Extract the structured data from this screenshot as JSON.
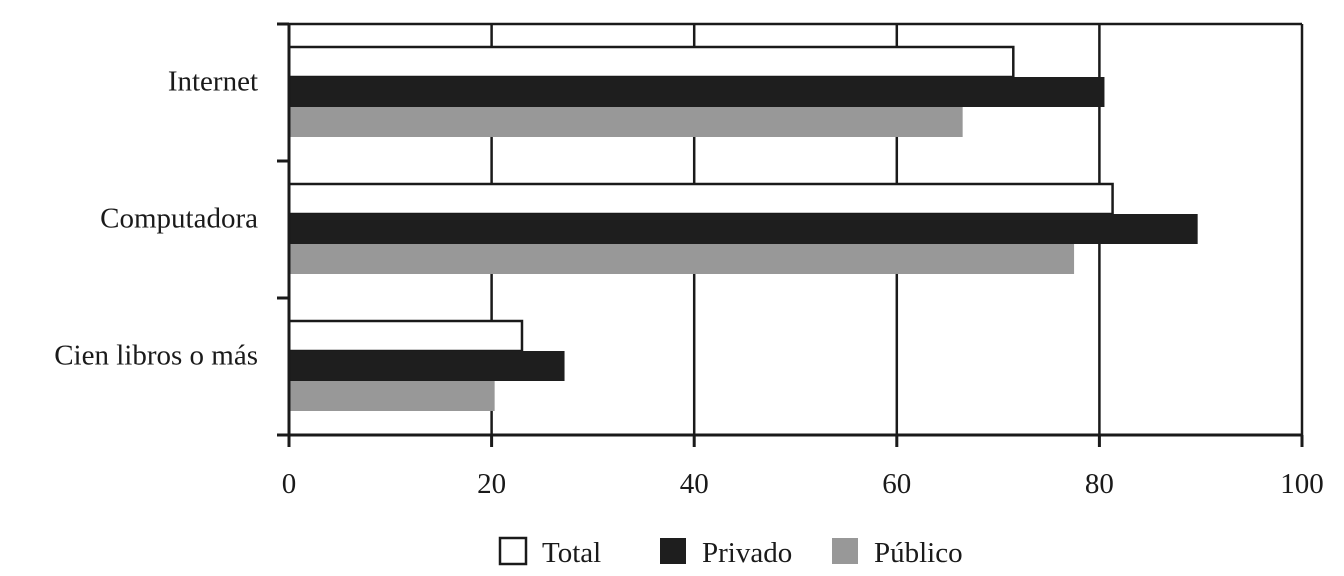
{
  "chart_data": {
    "type": "bar",
    "orientation": "horizontal",
    "categories": [
      "Internet",
      "Computadora",
      "Cien libros  o más"
    ],
    "series": [
      {
        "name": "Total",
        "values": [
          71.5,
          81.3,
          23.0
        ],
        "color": "#ffffff"
      },
      {
        "name": "Privado",
        "values": [
          80.5,
          89.7,
          27.2
        ],
        "color": "#1e1e1e"
      },
      {
        "name": "Público",
        "values": [
          66.5,
          77.5,
          20.3
        ],
        "color": "#989898"
      }
    ],
    "xlim": [
      0,
      100
    ],
    "xticks": [
      0,
      20,
      40,
      60,
      80,
      100
    ],
    "grid": true,
    "legend_position": "bottom"
  }
}
